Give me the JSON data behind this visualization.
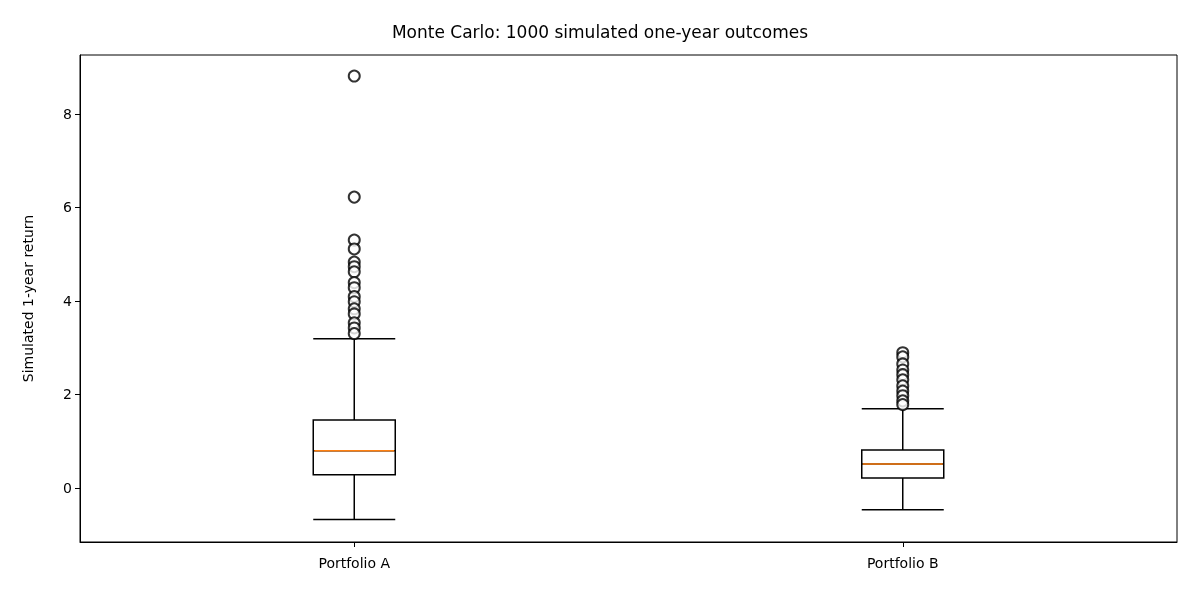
{
  "chart_data": {
    "type": "box",
    "title": "Monte Carlo: 1000 simulated one-year outcomes",
    "ylabel": "Simulated 1-year return",
    "categories": [
      "Portfolio A",
      "Portfolio B"
    ],
    "series": [
      {
        "color": "#000000",
        "boxes": [
          {
            "low": -0.68,
            "q1": 0.28,
            "median": 0.79,
            "q3": 1.45,
            "high": 3.19,
            "outliers": [
              8.81,
              6.22,
              5.3,
              5.11,
              4.83,
              4.73,
              4.62,
              4.39,
              4.28,
              4.09,
              3.98,
              3.83,
              3.72,
              3.53,
              3.42,
              3.3
            ]
          },
          {
            "low": -0.47,
            "q1": 0.21,
            "median": 0.51,
            "q3": 0.81,
            "high": 1.69,
            "outliers": [
              2.89,
              2.8,
              2.65,
              2.52,
              2.42,
              2.31,
              2.18,
              2.07,
              1.97,
              1.86,
              1.78
            ]
          }
        ]
      }
    ],
    "ylim": [
      -1.16,
      9.26
    ],
    "yticks": [
      0,
      2,
      4,
      6,
      8
    ],
    "grid": false,
    "marker": "circle"
  }
}
